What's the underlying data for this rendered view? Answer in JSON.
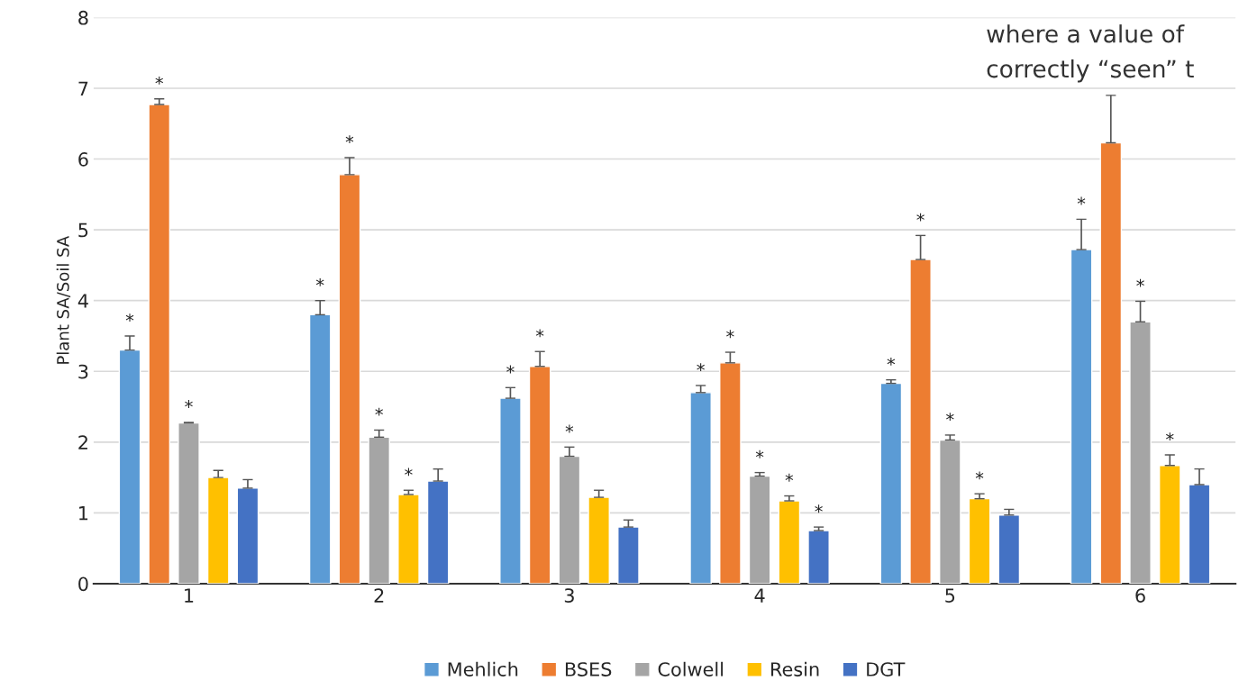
{
  "chart_data": {
    "type": "bar",
    "ylabel": "Plant SA/Soil SA",
    "categories": [
      "1",
      "2",
      "3",
      "4",
      "5",
      "6"
    ],
    "series": [
      {
        "name": "Mehlich",
        "color": "#5b9bd5",
        "values": [
          3.3,
          3.8,
          2.62,
          2.7,
          2.83,
          4.72
        ],
        "errors": [
          [
            3.3,
            3.5
          ],
          [
            3.8,
            4.0
          ],
          [
            2.62,
            2.77
          ],
          [
            2.7,
            2.8
          ],
          [
            2.83,
            2.88
          ],
          [
            4.72,
            5.15
          ]
        ],
        "value_labels": [
          "*",
          "*",
          "*",
          "*",
          "*",
          "*"
        ]
      },
      {
        "name": "BSES",
        "color": "#ed7d31",
        "values": [
          6.77,
          5.78,
          3.07,
          3.12,
          4.58,
          6.23
        ],
        "errors": [
          [
            6.77,
            6.85
          ],
          [
            5.78,
            6.02
          ],
          [
            3.07,
            3.28
          ],
          [
            3.12,
            3.27
          ],
          [
            4.58,
            4.92
          ],
          [
            6.23,
            6.9
          ]
        ],
        "value_labels": [
          "*",
          "*",
          "*",
          "*",
          "*",
          null
        ]
      },
      {
        "name": "Colwell",
        "color": "#a5a5a5",
        "values": [
          2.27,
          2.07,
          1.8,
          1.52,
          2.03,
          3.7
        ],
        "errors": [
          [
            2.27,
            2.28
          ],
          [
            2.07,
            2.17
          ],
          [
            1.8,
            1.93
          ],
          [
            1.52,
            1.57
          ],
          [
            2.03,
            2.1
          ],
          [
            3.7,
            3.99
          ]
        ],
        "value_labels": [
          "*",
          "*",
          "*",
          "*",
          "*",
          "*"
        ]
      },
      {
        "name": "Resin",
        "color": "#ffc000",
        "values": [
          1.5,
          1.26,
          1.22,
          1.17,
          1.2,
          1.67
        ],
        "errors": [
          [
            1.5,
            1.6
          ],
          [
            1.26,
            1.32
          ],
          [
            1.22,
            1.32
          ],
          [
            1.17,
            1.24
          ],
          [
            1.2,
            1.27
          ],
          [
            1.67,
            1.82
          ]
        ],
        "value_labels": [
          null,
          "*",
          null,
          "*",
          "*",
          "*"
        ]
      },
      {
        "name": "DGT",
        "color": "#4472c4",
        "values": [
          1.35,
          1.45,
          0.8,
          0.75,
          0.97,
          1.4
        ],
        "errors": [
          [
            1.35,
            1.47
          ],
          [
            1.45,
            1.62
          ],
          [
            0.8,
            0.9
          ],
          [
            0.75,
            0.8
          ],
          [
            0.97,
            1.05
          ],
          [
            1.4,
            1.62
          ]
        ],
        "value_labels": [
          null,
          null,
          null,
          "*",
          null,
          null
        ]
      }
    ],
    "ylim": [
      0,
      8
    ],
    "yticks": [
      0,
      1,
      2,
      3,
      4,
      5,
      6,
      7,
      8
    ],
    "grid": "y",
    "legend": "bottom",
    "annotations": [
      "where a value of",
      "correctly “seen” t"
    ]
  }
}
